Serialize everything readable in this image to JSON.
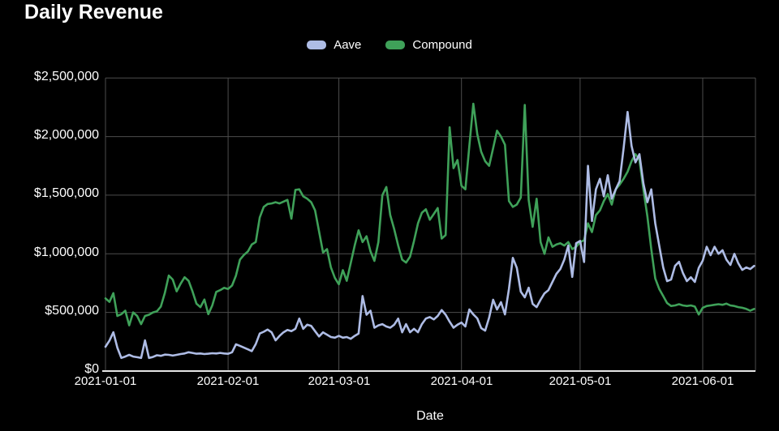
{
  "title": "Daily Revenue",
  "legend": [
    {
      "label": "Aave",
      "color": "#aebce5"
    },
    {
      "label": "Compound",
      "color": "#3fa159"
    }
  ],
  "colors": {
    "background": "#000000",
    "text": "#ffffff",
    "gridline": "#4d4d4d",
    "axis_line": "#e6e6e6",
    "aave_line": "#aebce5",
    "compound_line": "#3fa159"
  },
  "chart_data": {
    "type": "line",
    "title": "Daily Revenue",
    "xlabel": "Date",
    "ylabel": "",
    "x_range": [
      "2021-01-01",
      "2021-06-14"
    ],
    "x_unit": "day",
    "ylim": [
      0,
      2500000
    ],
    "grid": true,
    "legend_position": "top",
    "y_tick_labels": [
      "$2,500,000",
      "$2,000,000",
      "$1,500,000",
      "$1,000,000",
      "$500,000",
      "$0"
    ],
    "y_grid_values_k": [
      0,
      500,
      1000,
      1500,
      2000,
      2500
    ],
    "x_tick_labels": [
      "2021-01-01",
      "2021-02-01",
      "2021-03-01",
      "2021-04-01",
      "2021-05-01",
      "2021-06-01"
    ],
    "x_grid_days": [
      0,
      31,
      59,
      90,
      120,
      151
    ],
    "values_unit": "USD thousands per day, starting 2021-01-01",
    "series": [
      {
        "name": "Aave",
        "color": "#aebce5",
        "values_usd_thousands": [
          207,
          260,
          331,
          200,
          112,
          124,
          138,
          124,
          118,
          112,
          262,
          112,
          120,
          135,
          130,
          140,
          138,
          132,
          138,
          145,
          150,
          160,
          155,
          148,
          150,
          145,
          148,
          152,
          150,
          155,
          150,
          147,
          160,
          228,
          215,
          200,
          185,
          170,
          230,
          320,
          335,
          354,
          330,
          262,
          300,
          330,
          350,
          340,
          360,
          448,
          360,
          395,
          385,
          340,
          295,
          330,
          310,
          290,
          285,
          300,
          285,
          290,
          275,
          300,
          320,
          640,
          480,
          515,
          370,
          390,
          400,
          380,
          370,
          395,
          448,
          330,
          400,
          331,
          360,
          331,
          400,
          448,
          460,
          440,
          470,
          520,
          480,
          421,
          370,
          395,
          414,
          380,
          525,
          483,
          449,
          366,
          345,
          456,
          608,
          525,
          587,
          483,
          700,
          965,
          880,
          677,
          629,
          711,
          573,
          545,
          608,
          663,
          690,
          760,
          829,
          870,
          950,
          1070,
          803,
          1090,
          1110,
          930,
          1750,
          1280,
          1550,
          1640,
          1490,
          1670,
          1470,
          1550,
          1620,
          1900,
          2210,
          1920,
          1780,
          1850,
          1600,
          1440,
          1550,
          1260,
          1070,
          884,
          767,
          780,
          897,
          932,
          836,
          767,
          800,
          760,
          880,
          942,
          1060,
          988,
          1060,
          1000,
          1030,
          950,
          905,
          1000,
          918,
          863,
          884,
          870,
          897
        ]
      },
      {
        "name": "Compound",
        "color": "#3fa159",
        "values_usd_thousands": [
          620,
          590,
          665,
          470,
          485,
          515,
          390,
          500,
          470,
          400,
          470,
          480,
          500,
          510,
          550,
          665,
          815,
          780,
          680,
          745,
          800,
          770,
          680,
          575,
          545,
          610,
          485,
          560,
          675,
          690,
          710,
          700,
          730,
          815,
          950,
          990,
          1020,
          1080,
          1100,
          1310,
          1400,
          1425,
          1430,
          1440,
          1430,
          1445,
          1460,
          1300,
          1545,
          1550,
          1490,
          1470,
          1440,
          1370,
          1190,
          1010,
          1040,
          884,
          794,
          740,
          860,
          770,
          920,
          1070,
          1200,
          1100,
          1150,
          1020,
          940,
          1100,
          1500,
          1570,
          1330,
          1210,
          1070,
          950,
          925,
          975,
          1110,
          1260,
          1350,
          1380,
          1290,
          1340,
          1390,
          1130,
          1160,
          2080,
          1730,
          1800,
          1580,
          1550,
          1920,
          2280,
          2020,
          1870,
          1790,
          1750,
          1900,
          2050,
          2000,
          1930,
          1450,
          1400,
          1420,
          1480,
          2270,
          1460,
          1230,
          1470,
          1100,
          1000,
          1140,
          1060,
          1080,
          1090,
          1070,
          1100,
          1040,
          1060,
          1100,
          1115,
          1260,
          1185,
          1330,
          1370,
          1450,
          1510,
          1420,
          1550,
          1590,
          1640,
          1700,
          1790,
          1850,
          1800,
          1550,
          1320,
          1040,
          790,
          700,
          640,
          580,
          555,
          560,
          570,
          560,
          555,
          560,
          550,
          482,
          540,
          555,
          560,
          565,
          570,
          565,
          575,
          560,
          555,
          545,
          540,
          530,
          515,
          530
        ]
      }
    ]
  }
}
